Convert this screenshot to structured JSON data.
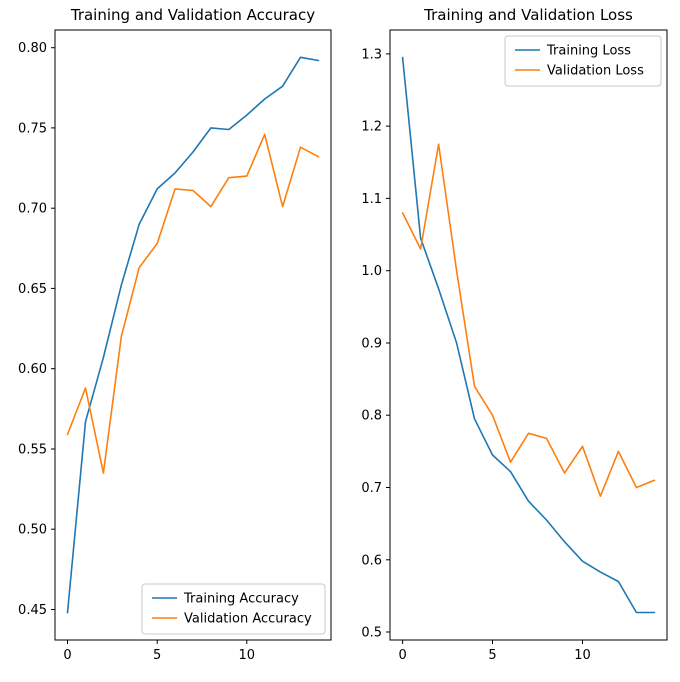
{
  "figure": {
    "background": "#ffffff",
    "frame_color": "#000000",
    "text_color": "#000000",
    "legend_border_color": "#c9c9c9"
  },
  "chart_data": [
    {
      "type": "line",
      "title": "Training and Validation Accuracy",
      "xlabel": "",
      "ylabel": "",
      "x": [
        0,
        1,
        2,
        3,
        4,
        5,
        6,
        7,
        8,
        9,
        10,
        11,
        12,
        13,
        14
      ],
      "xlim": [
        -0.7,
        14.7
      ],
      "ylim": [
        0.431,
        0.811
      ],
      "xticks": [
        0,
        5,
        10
      ],
      "xtick_labels": [
        "0",
        "5",
        "10"
      ],
      "yticks": [
        0.45,
        0.5,
        0.55,
        0.6,
        0.65,
        0.7,
        0.75,
        0.8
      ],
      "ytick_labels": [
        "0.45",
        "0.50",
        "0.55",
        "0.60",
        "0.65",
        "0.70",
        "0.75",
        "0.80"
      ],
      "grid": false,
      "legend_pos": "lower-right",
      "series": [
        {
          "name": "Training Accuracy",
          "color": "#1f77b4",
          "values": [
            0.448,
            0.567,
            0.607,
            0.652,
            0.69,
            0.712,
            0.722,
            0.735,
            0.75,
            0.749,
            0.758,
            0.768,
            0.776,
            0.794,
            0.792
          ]
        },
        {
          "name": "Validation Accuracy",
          "color": "#ff7f0e",
          "values": [
            0.559,
            0.588,
            0.535,
            0.62,
            0.663,
            0.678,
            0.712,
            0.711,
            0.701,
            0.719,
            0.72,
            0.746,
            0.701,
            0.738,
            0.732
          ]
        }
      ]
    },
    {
      "type": "line",
      "title": "Training and Validation Loss",
      "xlabel": "",
      "ylabel": "",
      "x": [
        0,
        1,
        2,
        3,
        4,
        5,
        6,
        7,
        8,
        9,
        10,
        11,
        12,
        13,
        14
      ],
      "xlim": [
        -0.7,
        14.7
      ],
      "ylim": [
        0.489,
        1.333
      ],
      "xticks": [
        0,
        5,
        10
      ],
      "xtick_labels": [
        "0",
        "5",
        "10"
      ],
      "yticks": [
        0.5,
        0.6,
        0.7,
        0.8,
        0.9,
        1.0,
        1.1,
        1.2,
        1.3
      ],
      "ytick_labels": [
        "0.5",
        "0.6",
        "0.7",
        "0.8",
        "0.9",
        "1.0",
        "1.1",
        "1.2",
        "1.3"
      ],
      "grid": false,
      "legend_pos": "upper-right",
      "series": [
        {
          "name": "Training Loss",
          "color": "#1f77b4",
          "values": [
            1.295,
            1.045,
            0.975,
            0.9,
            0.795,
            0.745,
            0.722,
            0.681,
            0.655,
            0.625,
            0.598,
            0.583,
            0.57,
            0.527,
            0.527
          ]
        },
        {
          "name": "Validation Loss",
          "color": "#ff7f0e",
          "values": [
            1.08,
            1.03,
            1.175,
            1.0,
            0.84,
            0.8,
            0.735,
            0.775,
            0.768,
            0.72,
            0.757,
            0.688,
            0.75,
            0.7,
            0.71
          ]
        }
      ]
    }
  ]
}
